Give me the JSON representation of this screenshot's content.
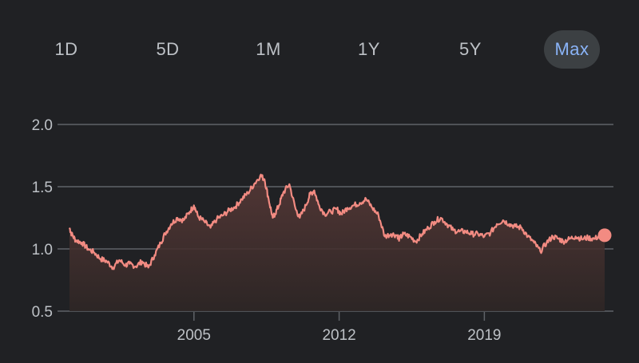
{
  "range_tabs": [
    {
      "label": "1D",
      "active": false
    },
    {
      "label": "5D",
      "active": false
    },
    {
      "label": "1M",
      "active": false
    },
    {
      "label": "1Y",
      "active": false
    },
    {
      "label": "5Y",
      "active": false
    },
    {
      "label": "Max",
      "active": true
    }
  ],
  "colors": {
    "background": "#202124",
    "line": "#f28b82",
    "active_tab_bg": "#3c4043",
    "active_tab_text": "#8ab4f8",
    "text": "#bdc1c6",
    "grid": "#5f6368"
  },
  "chart_data": {
    "type": "area",
    "x_ticks": [
      "2005",
      "2012",
      "2019"
    ],
    "y_ticks": [
      0.5,
      1.0,
      1.5,
      2.0
    ],
    "ylim": [
      0.5,
      2.0
    ],
    "xlim": [
      1999.0,
      2024.8
    ],
    "grid": true,
    "end_marker": true,
    "series": [
      {
        "x": [
          1999.0,
          1999.1,
          1999.3,
          1999.6,
          1999.9,
          2000.2,
          2000.5,
          2000.8,
          2001.1,
          2001.4,
          2001.7,
          2001.9,
          2002.2,
          2002.5,
          2002.8,
          2003.1,
          2003.4,
          2003.6,
          2003.9,
          2004.2,
          2004.5,
          2004.8,
          2005.0,
          2005.2,
          2005.5,
          2005.8,
          2006.1,
          2006.4,
          2006.7,
          2007.0,
          2007.3,
          2007.6,
          2007.9,
          2008.2,
          2008.4,
          2008.6,
          2008.8,
          2008.9,
          2009.1,
          2009.3,
          2009.6,
          2009.9,
          2010.1,
          2010.4,
          2010.6,
          2010.8,
          2011.0,
          2011.3,
          2011.6,
          2011.9,
          2012.1,
          2012.4,
          2012.7,
          2013.0,
          2013.3,
          2013.6,
          2013.9,
          2014.2,
          2014.5,
          2014.8,
          2014.9,
          2015.1,
          2015.4,
          2015.7,
          2016.0,
          2016.3,
          2016.6,
          2016.9,
          2017.2,
          2017.5,
          2017.8,
          2018.1,
          2018.4,
          2018.7,
          2019.0,
          2019.3,
          2019.6,
          2019.9,
          2020.2,
          2020.5,
          2020.8,
          2021.1,
          2021.4,
          2021.7,
          2022.0,
          2022.3,
          2022.6,
          2022.8,
          2023.1,
          2023.4,
          2023.7,
          2024.0,
          2024.3,
          2024.6,
          2024.8
        ],
        "values": [
          1.17,
          1.12,
          1.07,
          1.05,
          1.0,
          0.97,
          0.92,
          0.9,
          0.85,
          0.91,
          0.87,
          0.88,
          0.86,
          0.9,
          0.85,
          0.95,
          1.05,
          1.12,
          1.2,
          1.25,
          1.23,
          1.3,
          1.35,
          1.26,
          1.22,
          1.17,
          1.24,
          1.27,
          1.31,
          1.34,
          1.4,
          1.45,
          1.52,
          1.59,
          1.56,
          1.4,
          1.25,
          1.28,
          1.35,
          1.45,
          1.52,
          1.32,
          1.25,
          1.35,
          1.44,
          1.47,
          1.36,
          1.28,
          1.3,
          1.32,
          1.28,
          1.33,
          1.35,
          1.37,
          1.4,
          1.33,
          1.27,
          1.1,
          1.12,
          1.11,
          1.08,
          1.12,
          1.1,
          1.06,
          1.12,
          1.17,
          1.22,
          1.25,
          1.2,
          1.15,
          1.14,
          1.14,
          1.12,
          1.12,
          1.1,
          1.13,
          1.2,
          1.23,
          1.2,
          1.18,
          1.17,
          1.1,
          1.05,
          0.98,
          1.05,
          1.1,
          1.08,
          1.06,
          1.08,
          1.1,
          1.08,
          1.09,
          1.08,
          1.11,
          1.11
        ]
      }
    ]
  }
}
